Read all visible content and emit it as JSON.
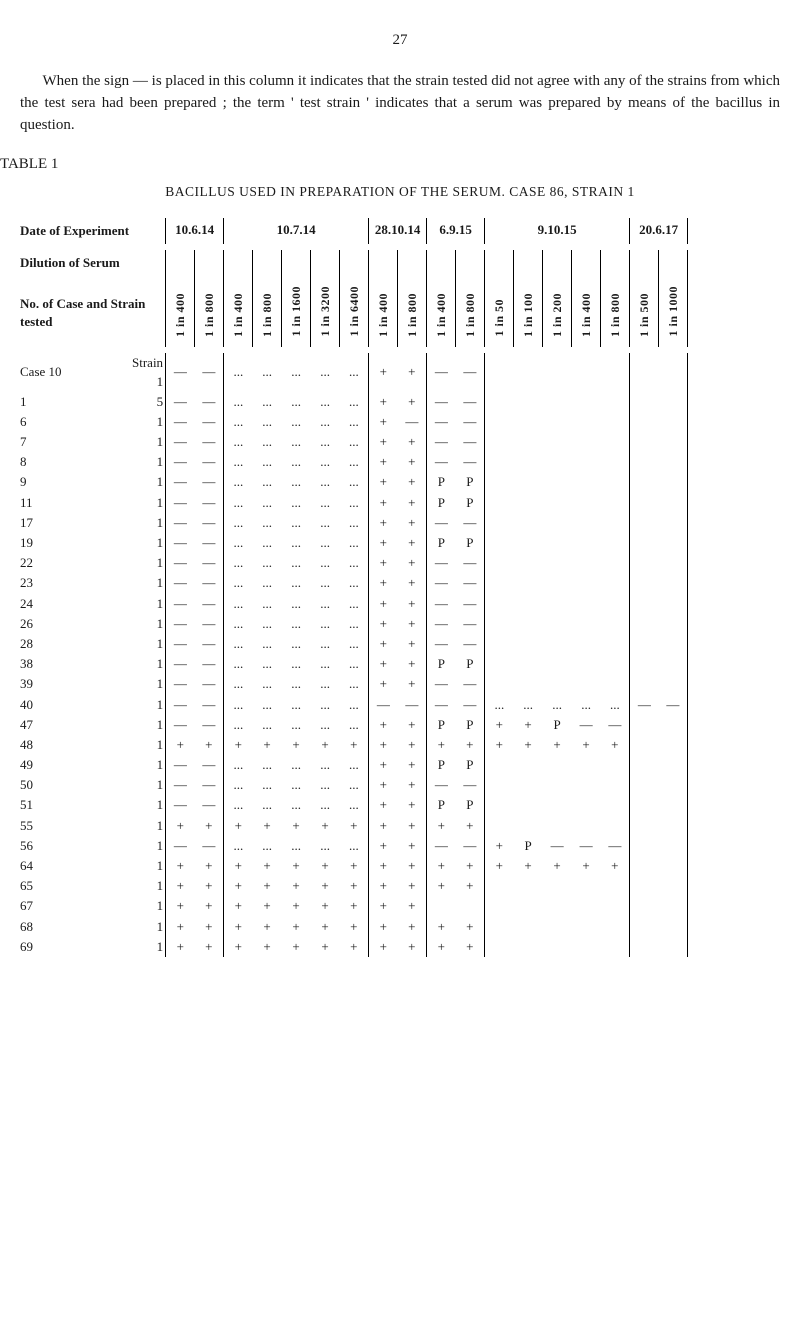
{
  "page_number": "27",
  "intro_text": "When the sign — is placed in this column it indicates that the strain tested did not agree with any of the strains from which the test sera had been prepared ; the term ' test strain ' indicates that a serum was prepared by means of the bacillus in question.",
  "table_label": "TABLE 1",
  "table_title": "BACILLUS USED IN PREPARATION OF THE SERUM.  CASE 86, STRAIN 1",
  "row_headers": {
    "date": "Date of Experiment",
    "dilution": "Dilution of Serum",
    "case_strain": "No. of Case and Strain tested"
  },
  "dates": [
    "10.6.14",
    "10.7.14",
    "28.10.14",
    "6.9.15",
    "9.10.15",
    "20.6.17"
  ],
  "date_spans": [
    2,
    5,
    2,
    2,
    5,
    2
  ],
  "dilutions": [
    "1 in 400",
    "1 in 800",
    "1 in 400",
    "1 in 800",
    "1 in 1600",
    "1 in 3200",
    "1 in 6400",
    "1 in 400",
    "1 in 800",
    "1 in 400",
    "1 in 800",
    "1 in 50",
    "1 in 100",
    "1 in 200",
    "1 in 400",
    "1 in 800",
    "1 in 500",
    "1 in 1000"
  ],
  "rows": [
    {
      "label": "Case 10",
      "strain": "Strain 1",
      "c": [
        "—",
        "—",
        "...",
        "...",
        "...",
        "...",
        "...",
        "+",
        "+",
        "—",
        "—",
        "",
        "",
        "",
        "",
        "",
        "",
        ""
      ]
    },
    {
      "label": "1",
      "strain": "5",
      "c": [
        "—",
        "—",
        "...",
        "...",
        "...",
        "...",
        "...",
        "+",
        "+",
        "—",
        "—",
        "",
        "",
        "",
        "",
        "",
        "",
        ""
      ]
    },
    {
      "label": "6",
      "strain": "1",
      "c": [
        "—",
        "—",
        "...",
        "...",
        "...",
        "...",
        "...",
        "+",
        "—",
        "—",
        "—",
        "",
        "",
        "",
        "",
        "",
        "",
        ""
      ]
    },
    {
      "label": "7",
      "strain": "1",
      "c": [
        "—",
        "—",
        "...",
        "...",
        "...",
        "...",
        "...",
        "+",
        "+",
        "—",
        "—",
        "",
        "",
        "",
        "",
        "",
        "",
        ""
      ]
    },
    {
      "label": "8",
      "strain": "1",
      "c": [
        "—",
        "—",
        "...",
        "...",
        "...",
        "...",
        "...",
        "+",
        "+",
        "—",
        "—",
        "",
        "",
        "",
        "",
        "",
        "",
        ""
      ]
    },
    {
      "label": "9",
      "strain": "1",
      "c": [
        "—",
        "—",
        "...",
        "...",
        "...",
        "...",
        "...",
        "+",
        "+",
        "P",
        "P",
        "",
        "",
        "",
        "",
        "",
        "",
        ""
      ]
    },
    {
      "label": "11",
      "strain": "1",
      "c": [
        "—",
        "—",
        "...",
        "...",
        "...",
        "...",
        "...",
        "+",
        "+",
        "P",
        "P",
        "",
        "",
        "",
        "",
        "",
        "",
        ""
      ]
    },
    {
      "label": "17",
      "strain": "1",
      "c": [
        "—",
        "—",
        "...",
        "...",
        "...",
        "...",
        "...",
        "+",
        "+",
        "—",
        "—",
        "",
        "",
        "",
        "",
        "",
        "",
        ""
      ]
    },
    {
      "label": "19",
      "strain": "1",
      "c": [
        "—",
        "—",
        "...",
        "...",
        "...",
        "...",
        "...",
        "+",
        "+",
        "P",
        "P",
        "",
        "",
        "",
        "",
        "",
        "",
        ""
      ]
    },
    {
      "label": "22",
      "strain": "1",
      "c": [
        "—",
        "—",
        "...",
        "...",
        "...",
        "...",
        "...",
        "+",
        "+",
        "—",
        "—",
        "",
        "",
        "",
        "",
        "",
        "",
        ""
      ]
    },
    {
      "label": "23",
      "strain": "1",
      "c": [
        "—",
        "—",
        "...",
        "...",
        "...",
        "...",
        "...",
        "+",
        "+",
        "—",
        "—",
        "",
        "",
        "",
        "",
        "",
        "",
        ""
      ]
    },
    {
      "label": "24",
      "strain": "1",
      "c": [
        "—",
        "—",
        "...",
        "...",
        "...",
        "...",
        "...",
        "+",
        "+",
        "—",
        "—",
        "",
        "",
        "",
        "",
        "",
        "",
        ""
      ]
    },
    {
      "label": "26",
      "strain": "1",
      "c": [
        "—",
        "—",
        "...",
        "...",
        "...",
        "...",
        "...",
        "+",
        "+",
        "—",
        "—",
        "",
        "",
        "",
        "",
        "",
        "",
        ""
      ]
    },
    {
      "label": "28",
      "strain": "1",
      "c": [
        "—",
        "—",
        "...",
        "...",
        "...",
        "...",
        "...",
        "+",
        "+",
        "—",
        "—",
        "",
        "",
        "",
        "",
        "",
        "",
        ""
      ]
    },
    {
      "label": "38",
      "strain": "1",
      "c": [
        "—",
        "—",
        "...",
        "...",
        "...",
        "...",
        "...",
        "+",
        "+",
        "P",
        "P",
        "",
        "",
        "",
        "",
        "",
        "",
        ""
      ]
    },
    {
      "label": "39",
      "strain": "1",
      "c": [
        "—",
        "—",
        "...",
        "...",
        "...",
        "...",
        "...",
        "+",
        "+",
        "—",
        "—",
        "",
        "",
        "",
        "",
        "",
        "",
        ""
      ]
    },
    {
      "label": "40",
      "strain": "1",
      "c": [
        "—",
        "—",
        "...",
        "...",
        "...",
        "...",
        "...",
        "—",
        "—",
        "—",
        "—",
        "...",
        "...",
        "...",
        "...",
        "...",
        "—",
        "—"
      ]
    },
    {
      "label": "47",
      "strain": "1",
      "c": [
        "—",
        "—",
        "...",
        "...",
        "...",
        "...",
        "...",
        "+",
        "+",
        "P",
        "P",
        "+",
        "+",
        "P",
        "—",
        "—",
        "",
        ""
      ]
    },
    {
      "label": "48",
      "strain": "1",
      "c": [
        "+",
        "+",
        "+",
        "+",
        "+",
        "+",
        "+",
        "+",
        "+",
        "+",
        "+",
        "+",
        "+",
        "+",
        "+",
        "+",
        "",
        ""
      ]
    },
    {
      "label": "49",
      "strain": "1",
      "c": [
        "—",
        "—",
        "...",
        "...",
        "...",
        "...",
        "...",
        "+",
        "+",
        "P",
        "P",
        "",
        "",
        "",
        "",
        "",
        "",
        ""
      ]
    },
    {
      "label": "50",
      "strain": "1",
      "c": [
        "—",
        "—",
        "...",
        "...",
        "...",
        "...",
        "...",
        "+",
        "+",
        "—",
        "—",
        "",
        "",
        "",
        "",
        "",
        "",
        ""
      ]
    },
    {
      "label": "51",
      "strain": "1",
      "c": [
        "—",
        "—",
        "...",
        "...",
        "...",
        "...",
        "...",
        "+",
        "+",
        "P",
        "P",
        "",
        "",
        "",
        "",
        "",
        "",
        ""
      ]
    },
    {
      "label": "55",
      "strain": "1",
      "c": [
        "+",
        "+",
        "+",
        "+",
        "+",
        "+",
        "+",
        "+",
        "+",
        "+",
        "+",
        "",
        "",
        "",
        "",
        "",
        "",
        ""
      ]
    },
    {
      "label": "56",
      "strain": "1",
      "c": [
        "—",
        "—",
        "...",
        "...",
        "...",
        "...",
        "...",
        "+",
        "+",
        "—",
        "—",
        "+",
        "P",
        "—",
        "—",
        "—",
        "",
        ""
      ]
    },
    {
      "label": "64",
      "strain": "1",
      "c": [
        "+",
        "+",
        "+",
        "+",
        "+",
        "+",
        "+",
        "+",
        "+",
        "+",
        "+",
        "+",
        "+",
        "+",
        "+",
        "+",
        "",
        ""
      ]
    },
    {
      "label": "65",
      "strain": "1",
      "c": [
        "+",
        "+",
        "+",
        "+",
        "+",
        "+",
        "+",
        "+",
        "+",
        "+",
        "+",
        "",
        "",
        "",
        "",
        "",
        "",
        ""
      ]
    },
    {
      "label": "67",
      "strain": "1",
      "c": [
        "+",
        "+",
        "+",
        "+",
        "+",
        "+",
        "+",
        "+",
        "+",
        "",
        "",
        "",
        "",
        "",
        "",
        "",
        "",
        ""
      ]
    },
    {
      "label": "68",
      "strain": "1",
      "c": [
        "+",
        "+",
        "+",
        "+",
        "+",
        "+",
        "+",
        "+",
        "+",
        "+",
        "+",
        "",
        "",
        "",
        "",
        "",
        "",
        ""
      ]
    },
    {
      "label": "69",
      "strain": "1",
      "c": [
        "+",
        "+",
        "+",
        "+",
        "+",
        "+",
        "+",
        "+",
        "+",
        "+",
        "+",
        "",
        "",
        "",
        "",
        "",
        "",
        ""
      ]
    }
  ],
  "group_boundaries": [
    2,
    7,
    9,
    11,
    16,
    18
  ],
  "colors": {
    "text": "#1a1a1a",
    "bg": "#ffffff",
    "border": "#000000"
  }
}
